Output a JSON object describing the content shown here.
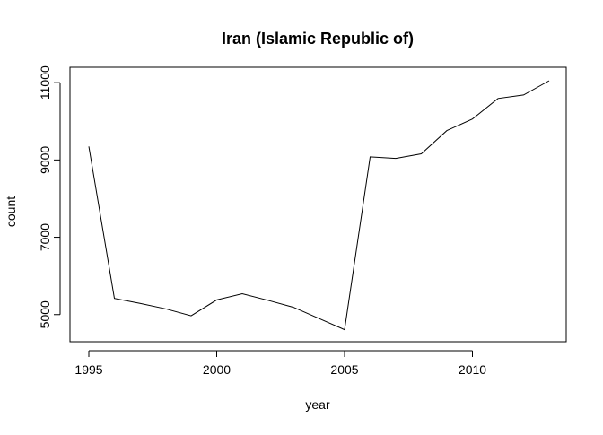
{
  "chart_data": {
    "type": "line",
    "title": "Iran (Islamic Republic of)",
    "xlabel": "year",
    "ylabel": "count",
    "xlim": [
      1995,
      2013
    ],
    "ylim": [
      4600,
      11050
    ],
    "x_ticks": [
      1995,
      2000,
      2005,
      2010
    ],
    "y_ticks": [
      5000,
      7000,
      9000,
      11000
    ],
    "grid": false,
    "legend": "none",
    "line_color": "#000000",
    "series": [
      {
        "x": [
          1995,
          1996,
          1997,
          1998,
          1999,
          2000,
          2001,
          2002,
          2003,
          2004,
          2005,
          2006,
          2007,
          2008,
          2009,
          2010,
          2011,
          2012,
          2013
        ],
        "values": [
          9350,
          5420,
          5290,
          5150,
          4970,
          5380,
          5540,
          5370,
          5190,
          4900,
          4610,
          9080,
          9040,
          9160,
          9760,
          10060,
          10590,
          10680,
          11050
        ]
      }
    ]
  }
}
